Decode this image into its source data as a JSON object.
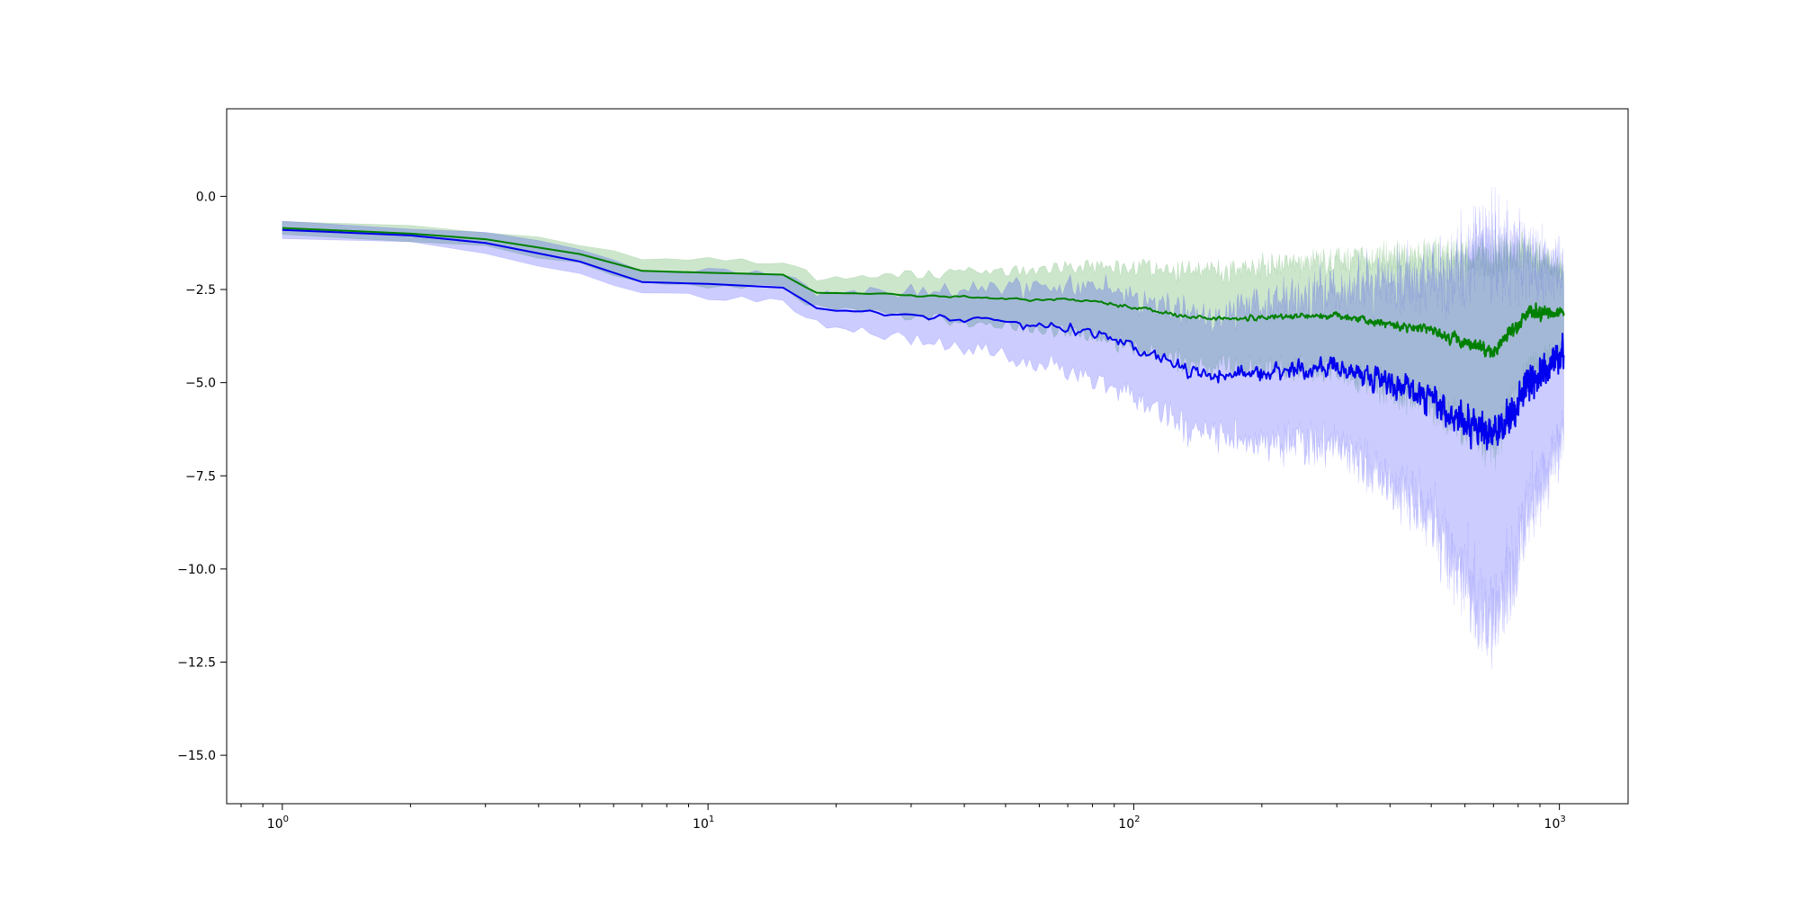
{
  "chart_data": {
    "type": "line",
    "title": "",
    "xlabel": "",
    "ylabel": "",
    "xscale": "log",
    "xlim": [
      0.74,
      1450
    ],
    "ylim": [
      -16.3,
      2.35
    ],
    "grid": false,
    "legend": "none",
    "x_ticks": [
      {
        "value": 1,
        "base": "10",
        "exp": "0"
      },
      {
        "value": 10,
        "base": "10",
        "exp": "1"
      },
      {
        "value": 100,
        "base": "10",
        "exp": "2"
      },
      {
        "value": 1000,
        "base": "10",
        "exp": "3"
      }
    ],
    "y_ticks": [
      {
        "value": 0.0,
        "label": "0.0"
      },
      {
        "value": -2.5,
        "label": "−2.5"
      },
      {
        "value": -5.0,
        "label": "−5.0"
      },
      {
        "value": -7.5,
        "label": "−7.5"
      },
      {
        "value": -10.0,
        "label": "−10.0"
      },
      {
        "value": -12.5,
        "label": "−12.5"
      },
      {
        "value": -15.0,
        "label": "−15.0"
      }
    ],
    "x_range": [
      1,
      1024
    ],
    "series": [
      {
        "color": "#008000",
        "band_color": "#008000",
        "band_opacity": 0.2,
        "anchors": [
          {
            "x": 1,
            "y": -0.85,
            "spread": 0.2,
            "noise": 0.0
          },
          {
            "x": 2,
            "y": -1.0,
            "spread": 0.2,
            "noise": 0.0
          },
          {
            "x": 3,
            "y": -1.15,
            "spread": 0.22,
            "noise": 0.0
          },
          {
            "x": 5,
            "y": -1.55,
            "spread": 0.25,
            "noise": 0.0
          },
          {
            "x": 7,
            "y": -2.0,
            "spread": 0.3,
            "noise": 0.0
          },
          {
            "x": 10,
            "y": -2.05,
            "spread": 0.35,
            "noise": 0.0
          },
          {
            "x": 15,
            "y": -2.1,
            "spread": 0.35,
            "noise": 0.0
          },
          {
            "x": 18,
            "y": -2.6,
            "spread": 0.4,
            "noise": 0.03
          },
          {
            "x": 30,
            "y": -2.65,
            "spread": 0.55,
            "noise": 0.05
          },
          {
            "x": 50,
            "y": -2.75,
            "spread": 0.7,
            "noise": 0.05
          },
          {
            "x": 80,
            "y": -2.8,
            "spread": 0.9,
            "noise": 0.08
          },
          {
            "x": 150,
            "y": -3.3,
            "spread": 1.2,
            "noise": 0.1
          },
          {
            "x": 300,
            "y": -3.2,
            "spread": 1.4,
            "noise": 0.15
          },
          {
            "x": 500,
            "y": -3.6,
            "spread": 1.9,
            "noise": 0.2
          },
          {
            "x": 700,
            "y": -4.2,
            "spread": 2.4,
            "noise": 0.28
          },
          {
            "x": 850,
            "y": -3.1,
            "spread": 1.5,
            "noise": 0.3
          },
          {
            "x": 1024,
            "y": -3.1,
            "spread": 1.0,
            "noise": 0.2
          }
        ]
      },
      {
        "color": "#0000ee",
        "band_color": "#0000ff",
        "band_opacity": 0.2,
        "anchors": [
          {
            "x": 1,
            "y": -0.9,
            "spread": 0.2,
            "noise": 0.0
          },
          {
            "x": 2,
            "y": -1.05,
            "spread": 0.22,
            "noise": 0.0
          },
          {
            "x": 3,
            "y": -1.25,
            "spread": 0.25,
            "noise": 0.0
          },
          {
            "x": 5,
            "y": -1.75,
            "spread": 0.3,
            "noise": 0.0
          },
          {
            "x": 7,
            "y": -2.3,
            "spread": 0.35,
            "noise": 0.0
          },
          {
            "x": 10,
            "y": -2.35,
            "spread": 0.35,
            "noise": 0.0
          },
          {
            "x": 15,
            "y": -2.45,
            "spread": 0.35,
            "noise": 0.0
          },
          {
            "x": 18,
            "y": -3.0,
            "spread": 0.4,
            "noise": 0.05
          },
          {
            "x": 30,
            "y": -3.2,
            "spread": 0.6,
            "noise": 0.12
          },
          {
            "x": 50,
            "y": -3.4,
            "spread": 0.8,
            "noise": 0.2
          },
          {
            "x": 80,
            "y": -3.6,
            "spread": 1.1,
            "noise": 0.3
          },
          {
            "x": 150,
            "y": -4.8,
            "spread": 1.5,
            "noise": 0.35
          },
          {
            "x": 300,
            "y": -4.6,
            "spread": 1.9,
            "noise": 0.45
          },
          {
            "x": 500,
            "y": -5.4,
            "spread": 3.0,
            "noise": 0.6
          },
          {
            "x": 700,
            "y": -6.5,
            "spread": 4.8,
            "noise": 0.9
          },
          {
            "x": 850,
            "y": -5.0,
            "spread": 3.0,
            "noise": 0.8
          },
          {
            "x": 1024,
            "y": -4.2,
            "spread": 2.0,
            "noise": 0.6
          }
        ]
      }
    ]
  }
}
